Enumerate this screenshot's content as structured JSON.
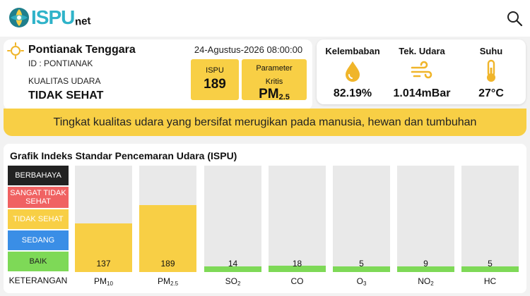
{
  "app": {
    "logo_text": "ISPU",
    "logo_sub": "net"
  },
  "location": {
    "station_name": "Pontianak Tenggara",
    "station_id": "ID : PONTIANAK",
    "aq_label": "KUALITAS UDARA",
    "aq_status": "TIDAK SEHAT",
    "datetime": "24-Agustus-2026 08:00:00",
    "ispu_label": "ISPU",
    "ispu_value": "189",
    "param_label_line1": "Parameter",
    "param_label_line2": "Kritis",
    "param_value_main": "PM",
    "param_value_sub": "2.5"
  },
  "weather": {
    "humidity_label": "Kelembaban",
    "humidity_value": "82.19%",
    "pressure_label": "Tek. Udara",
    "pressure_value": "1.014mBar",
    "temp_label": "Suhu",
    "temp_value": "27°C"
  },
  "banner": {
    "text": "Tingkat kualitas udara yang bersifat merugikan pada manusia, hewan dan tumbuhan"
  },
  "chart": {
    "title": "Grafik Indeks Standar Pencemaran Udara (ISPU)",
    "legend_footer": "KETERANGAN",
    "legend": [
      {
        "label": "BERBAHAYA",
        "color": "#222222",
        "text_color": "#ffffff"
      },
      {
        "label": "SANGAT TIDAK SEHAT",
        "color": "#f06262",
        "text_color": "#ffffff"
      },
      {
        "label": "TIDAK SEHAT",
        "color": "#f8cf45",
        "text_color": "#ffffff"
      },
      {
        "label": "SEDANG",
        "color": "#3a8ee6",
        "text_color": "#ffffff"
      },
      {
        "label": "BAIK",
        "color": "#7ed957",
        "text_color": "#222222"
      }
    ]
  },
  "chart_data": {
    "type": "bar",
    "categories": [
      "PM10",
      "PM2.5",
      "SO2",
      "CO",
      "O3",
      "NO2",
      "HC"
    ],
    "category_main": [
      "PM",
      "PM",
      "SO",
      "CO",
      "O",
      "NO",
      "HC"
    ],
    "category_sub": [
      "10",
      "2.5",
      "2",
      "",
      "3",
      "2",
      ""
    ],
    "values": [
      137,
      189,
      14,
      18,
      5,
      9,
      5
    ],
    "value_labels": [
      "137",
      "189",
      "14",
      "18",
      "5",
      "9",
      "5"
    ],
    "colors": [
      "#f8cf45",
      "#f8cf45",
      "#7ed957",
      "#7ed957",
      "#7ed957",
      "#7ed957",
      "#7ed957"
    ],
    "ylim": [
      0,
      300
    ],
    "grid": false
  }
}
